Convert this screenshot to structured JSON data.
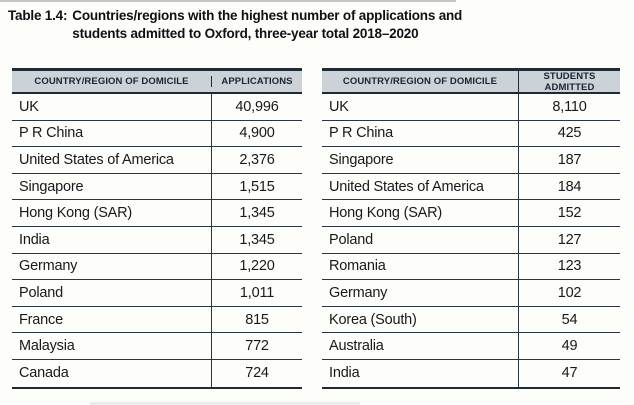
{
  "title": {
    "label": "Table 1.4:",
    "line1": "Countries/regions with the highest number of applications and",
    "line2": "students admitted to Oxford, three-year total 2018–2020"
  },
  "colors": {
    "table_border": "#1f2a35",
    "header_background": "#cbd2d8",
    "text": "#15181c",
    "page_background": "#fdfdfa"
  },
  "chart_data": {
    "type": "table",
    "title": "Table 1.4: Countries/regions with the highest number of applications and students admitted to Oxford, three-year total 2018–2020"
  },
  "tables": [
    {
      "name": "applications",
      "headers": [
        "COUNTRY/REGION OF DOMICILE",
        "APPLICATIONS"
      ],
      "rows": [
        {
          "country": "UK",
          "value": "40,996"
        },
        {
          "country": "P R China",
          "value": "4,900"
        },
        {
          "country": "United States of America",
          "value": "2,376"
        },
        {
          "country": "Singapore",
          "value": "1,515"
        },
        {
          "country": "Hong Kong (SAR)",
          "value": "1,345"
        },
        {
          "country": "India",
          "value": "1,345"
        },
        {
          "country": "Germany",
          "value": "1,220"
        },
        {
          "country": "Poland",
          "value": "1,011"
        },
        {
          "country": "France",
          "value": "815"
        },
        {
          "country": "Malaysia",
          "value": "772"
        },
        {
          "country": "Canada",
          "value": "724"
        }
      ]
    },
    {
      "name": "students_admitted",
      "headers": [
        "COUNTRY/REGION OF DOMICILE",
        "STUDENTS ADMITTED"
      ],
      "rows": [
        {
          "country": "UK",
          "value": "8,110"
        },
        {
          "country": "P R China",
          "value": "425"
        },
        {
          "country": "Singapore",
          "value": "187"
        },
        {
          "country": "United States of America",
          "value": "184"
        },
        {
          "country": "Hong Kong (SAR)",
          "value": "152"
        },
        {
          "country": "Poland",
          "value": "127"
        },
        {
          "country": "Romania",
          "value": "123"
        },
        {
          "country": "Germany",
          "value": "102"
        },
        {
          "country": "Korea (South)",
          "value": "54"
        },
        {
          "country": "Australia",
          "value": "49"
        },
        {
          "country": "India",
          "value": "47"
        }
      ]
    }
  ]
}
